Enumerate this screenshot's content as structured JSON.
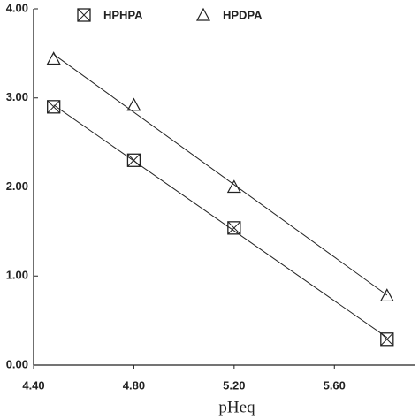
{
  "chart_data": {
    "type": "scatter",
    "x_label": "pHeq",
    "series": [
      {
        "name": "HPHPA",
        "color": "#222222",
        "marker": "boxx",
        "x": [
          4.48,
          4.8,
          5.2,
          5.81
        ],
        "values": [
          2.9,
          2.3,
          1.54,
          0.29
        ]
      },
      {
        "name": "HPDPA",
        "color": "#222222",
        "marker": "triangle",
        "x": [
          4.48,
          4.8,
          5.2,
          5.81
        ],
        "values": [
          3.44,
          2.92,
          2.0,
          0.78
        ]
      }
    ],
    "fit_lines": true,
    "xlim": [
      4.4,
      5.92
    ],
    "xticks": [
      {
        "value": 4.4,
        "label": "4.40"
      },
      {
        "value": 4.8,
        "label": "4.80"
      },
      {
        "value": 5.2,
        "label": "5.20"
      },
      {
        "value": 5.6,
        "label": "5.60"
      }
    ],
    "ylim": [
      0,
      4
    ],
    "yticks": [
      {
        "value": 0,
        "label": "0.00"
      },
      {
        "value": 1,
        "label": "1.00"
      },
      {
        "value": 2,
        "label": "2.00"
      },
      {
        "value": 3,
        "label": "3.00"
      },
      {
        "value": 4,
        "label": "4.00"
      }
    ],
    "legend": "top"
  }
}
